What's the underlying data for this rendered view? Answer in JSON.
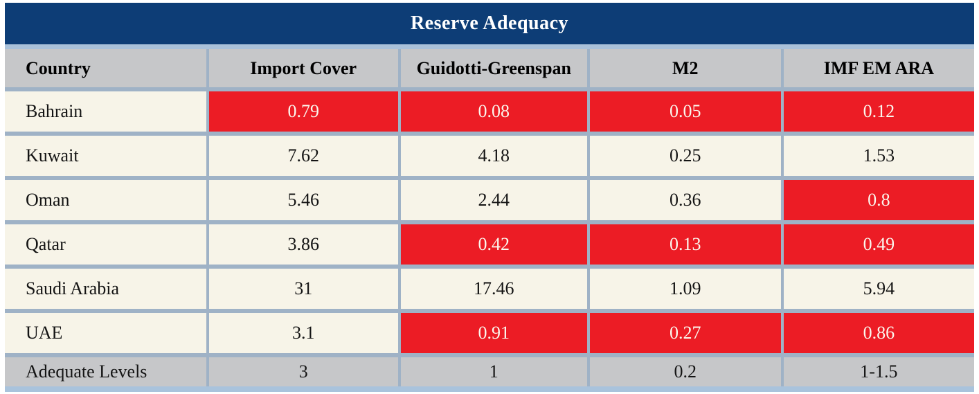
{
  "table": {
    "title": "Reserve Adequacy",
    "columns": [
      "Country",
      "Import Cover",
      "Guidotti-Greenspan",
      "M2",
      "IMF EM ARA"
    ],
    "rows": [
      {
        "country": "Bahrain",
        "values": [
          "0.79",
          "0.08",
          "0.05",
          "0.12"
        ],
        "alerts": [
          true,
          true,
          true,
          true
        ]
      },
      {
        "country": "Kuwait",
        "values": [
          "7.62",
          "4.18",
          "0.25",
          "1.53"
        ],
        "alerts": [
          false,
          false,
          false,
          false
        ]
      },
      {
        "country": "Oman",
        "values": [
          "5.46",
          "2.44",
          "0.36",
          "0.8"
        ],
        "alerts": [
          false,
          false,
          false,
          true
        ]
      },
      {
        "country": "Qatar",
        "values": [
          "3.86",
          "0.42",
          "0.13",
          "0.49"
        ],
        "alerts": [
          false,
          true,
          true,
          true
        ]
      },
      {
        "country": "Saudi Arabia",
        "values": [
          "31",
          "17.46",
          "1.09",
          "5.94"
        ],
        "alerts": [
          false,
          false,
          false,
          false
        ]
      },
      {
        "country": "UAE",
        "values": [
          "3.1",
          "0.91",
          "0.27",
          "0.86"
        ],
        "alerts": [
          false,
          true,
          true,
          true
        ]
      }
    ],
    "footer": {
      "label": "Adequate Levels",
      "values": [
        "3",
        "1",
        "0.2",
        "1-1.5"
      ]
    },
    "colors": {
      "title_navy": "#0d3d76",
      "alert_red": "#ec1c25",
      "row_cream": "#f7f4e8",
      "header_gray": "#c6c7c9",
      "separator_blue": "#9fb2c6",
      "accent_light_blue": "#a9c1da",
      "bottom_band_blue": "#a9c3dc"
    },
    "column_widths": [
      "20.9%",
      "19.8%",
      "19.5%",
      "20.0%",
      "19.8%"
    ]
  },
  "chart_data": {
    "type": "table",
    "title": "Reserve Adequacy",
    "columns": [
      "Country",
      "Import Cover",
      "Guidotti-Greenspan",
      "M2",
      "IMF EM ARA"
    ],
    "rows": [
      [
        "Bahrain",
        0.79,
        0.08,
        0.05,
        0.12
      ],
      [
        "Kuwait",
        7.62,
        4.18,
        0.25,
        1.53
      ],
      [
        "Oman",
        5.46,
        2.44,
        0.36,
        0.8
      ],
      [
        "Qatar",
        3.86,
        0.42,
        0.13,
        0.49
      ],
      [
        "Saudi Arabia",
        31,
        17.46,
        1.09,
        5.94
      ],
      [
        "UAE",
        3.1,
        0.91,
        0.27,
        0.86
      ],
      [
        "Adequate Levels",
        3,
        1,
        0.2,
        "1-1.5"
      ]
    ],
    "highlighted_below_adequate_cells": {
      "Bahrain": [
        "Import Cover",
        "Guidotti-Greenspan",
        "M2",
        "IMF EM ARA"
      ],
      "Oman": [
        "IMF EM ARA"
      ],
      "Qatar": [
        "Guidotti-Greenspan",
        "M2",
        "IMF EM ARA"
      ],
      "UAE": [
        "Guidotti-Greenspan",
        "M2",
        "IMF EM ARA"
      ]
    },
    "legend_position": "none",
    "grid": true
  }
}
